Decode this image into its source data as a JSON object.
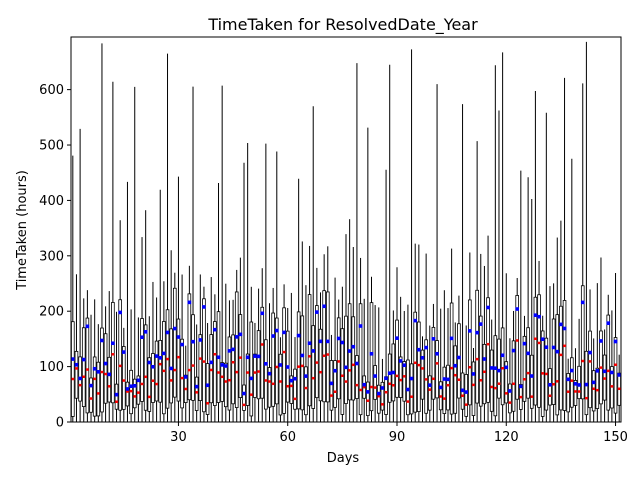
{
  "chart_data": {
    "type": "boxplot",
    "title": "TimeTaken for ResolvedDate_Year",
    "xlabel": "Days",
    "ylabel": "TimeTaken (hours)",
    "xlim": [
      0.5,
      151.5
    ],
    "ylim": [
      0,
      695
    ],
    "xticks": [
      30,
      60,
      90,
      120,
      150
    ],
    "yticks": [
      0,
      100,
      200,
      300,
      400,
      500,
      600
    ],
    "grid": false,
    "median_color": "#ff0000",
    "mean_color": "#0000ff",
    "box_color": "#000000",
    "spike_days": [
      1,
      3,
      9,
      12,
      16,
      18,
      21,
      25,
      27,
      30,
      34,
      41,
      42,
      48,
      49,
      54,
      57,
      63,
      67,
      79,
      82,
      87,
      88,
      94,
      101,
      108,
      112,
      117,
      118,
      119,
      124,
      126,
      127,
      128,
      131,
      136,
      138,
      141,
      142
    ]
  }
}
